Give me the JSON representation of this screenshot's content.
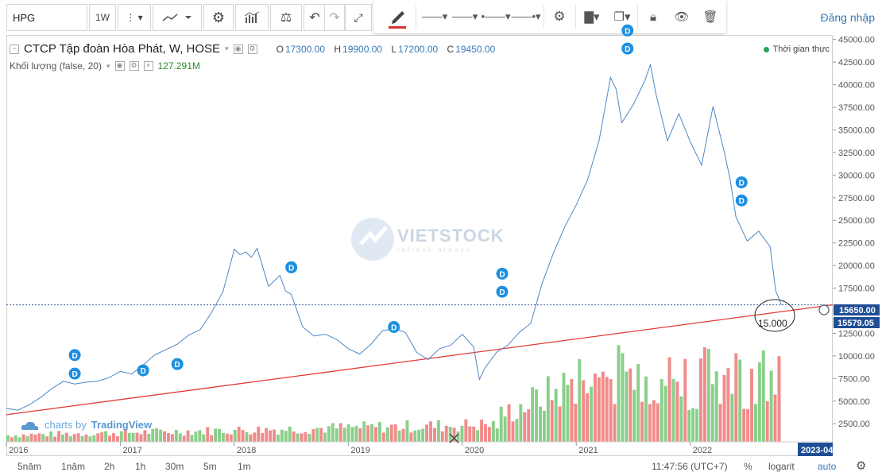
{
  "toolbar": {
    "symbol": "HPG",
    "interval": "1W",
    "login": "Đăng nhập"
  },
  "legend": {
    "title": "CTCP Tập đoàn Hòa Phát, W, HOSE",
    "open_label": "O",
    "open": "17300.00",
    "high_label": "H",
    "high": "19900.00",
    "low_label": "L",
    "low": "17200.00",
    "close_label": "C",
    "close": "19450.00",
    "volume_label": "Khối lượng (false, 20)",
    "volume_value": "127.291M",
    "realtime": "Thời gian thực"
  },
  "watermark": {
    "text": "VIETSTOCK",
    "sub": "refresh always"
  },
  "branding": {
    "prefix": "charts by",
    "name": "TradingView"
  },
  "price_tags": {
    "last": "15650.00",
    "line": "15579.05"
  },
  "annotation": "15.000",
  "bottom": {
    "ranges": [
      "5năm",
      "1năm",
      "2h",
      "1h",
      "30m",
      "5m",
      "1m"
    ],
    "time": "11:47:56 (UTC+7)",
    "percent": "%",
    "log": "logarit",
    "auto": "auto",
    "axis_end": "2023-04"
  },
  "colors": {
    "price_line": "#4f86c6",
    "trend_line": "#e03a3a",
    "vol_up": "#76c776",
    "vol_down": "#ef7777",
    "dividend": "#1d8fe1"
  },
  "chart_data": {
    "type": "line",
    "title": "CTCP Tập đoàn Hòa Phát, W, HOSE",
    "x_ticks": [
      "2016",
      "2017",
      "2018",
      "2019",
      "2020",
      "2021",
      "2022",
      "2023-04"
    ],
    "y_ticks": [
      2500,
      5000,
      7500,
      10000,
      12500,
      15000,
      17500,
      20000,
      22500,
      25000,
      27500,
      30000,
      32500,
      35000,
      37500,
      40000,
      42500,
      45000
    ],
    "y_tick_labels": [
      "2500.00",
      "5000.00",
      "7500.00",
      "10000.00",
      "12500.00",
      "15000.00",
      "17500.00",
      "20000.00",
      "22500.00",
      "25000.00",
      "27500.00",
      "30000.00",
      "32500.00",
      "35000.00",
      "37500.00",
      "40000.00",
      "42500.00",
      "45000.00"
    ],
    "ylim": [
      500,
      45500
    ],
    "x_range": [
      2016.0,
      2023.25
    ],
    "series": [
      {
        "x": [
          2016.0,
          2016.1,
          2016.2,
          2016.3,
          2016.4,
          2016.5,
          2016.6,
          2016.7,
          2016.8,
          2016.9,
          2017.0,
          2017.1,
          2017.2,
          2017.3,
          2017.4,
          2017.5,
          2017.6,
          2017.7,
          2017.8,
          2017.9,
          2018.0,
          2018.05,
          2018.1,
          2018.15,
          2018.2,
          2018.3,
          2018.4,
          2018.45,
          2018.5,
          2018.6,
          2018.7,
          2018.8,
          2018.9,
          2019.0,
          2019.1,
          2019.2,
          2019.3,
          2019.4,
          2019.5,
          2019.6,
          2019.7,
          2019.8,
          2019.9,
          2020.0,
          2020.1,
          2020.15,
          2020.2,
          2020.3,
          2020.4,
          2020.5,
          2020.6,
          2020.7,
          2020.8,
          2020.9,
          2021.0,
          2021.1,
          2021.2,
          2021.3,
          2021.35,
          2021.4,
          2021.5,
          2021.6,
          2021.65,
          2021.7,
          2021.8,
          2021.9,
          2022.0,
          2022.1,
          2022.2,
          2022.3,
          2022.35,
          2022.4,
          2022.5,
          2022.6,
          2022.7,
          2022.75,
          2022.8
        ],
        "y": [
          4200,
          4000,
          4600,
          5400,
          6400,
          7200,
          6900,
          7100,
          7200,
          7600,
          8300,
          8000,
          9000,
          10100,
          10700,
          11300,
          12300,
          12900,
          14800,
          17100,
          21800,
          21200,
          21500,
          20900,
          21900,
          17700,
          18900,
          17200,
          16800,
          13200,
          12200,
          12400,
          11800,
          10800,
          10200,
          11300,
          12800,
          13000,
          12600,
          10400,
          9600,
          10800,
          11200,
          12400,
          11000,
          7400,
          8700,
          10400,
          11200,
          12600,
          13600,
          18000,
          21400,
          24300,
          26700,
          29500,
          33800,
          40800,
          39500,
          35800,
          37800,
          40400,
          42200,
          38900,
          33800,
          36800,
          33700,
          31100,
          37600,
          32500,
          29500,
          25400,
          22700,
          23800,
          22100,
          17200,
          15650
        ]
      }
    ],
    "trend_line": {
      "x": [
        2016.0,
        2023.25
      ],
      "y": [
        3500,
        15650
      ]
    },
    "dividend_markers": [
      {
        "label": "D",
        "x": 2016.6,
        "y": 10100
      },
      {
        "label": "D",
        "x": 2016.6,
        "y": 8050
      },
      {
        "label": "D",
        "x": 2017.2,
        "y": 8400
      },
      {
        "label": "D",
        "x": 2017.5,
        "y": 9100
      },
      {
        "label": "D",
        "x": 2018.5,
        "y": 19800
      },
      {
        "label": "D",
        "x": 2019.4,
        "y": 13200
      },
      {
        "label": "D",
        "x": 2020.35,
        "y": 19100
      },
      {
        "label": "D",
        "x": 2020.35,
        "y": 17100
      },
      {
        "label": "D",
        "x": 2021.45,
        "y": 46000
      },
      {
        "label": "D",
        "x": 2021.45,
        "y": 44000
      },
      {
        "label": "D",
        "x": 2022.45,
        "y": 29200
      },
      {
        "label": "D",
        "x": 2022.45,
        "y": 27200
      }
    ],
    "volume_bars": 198
  }
}
